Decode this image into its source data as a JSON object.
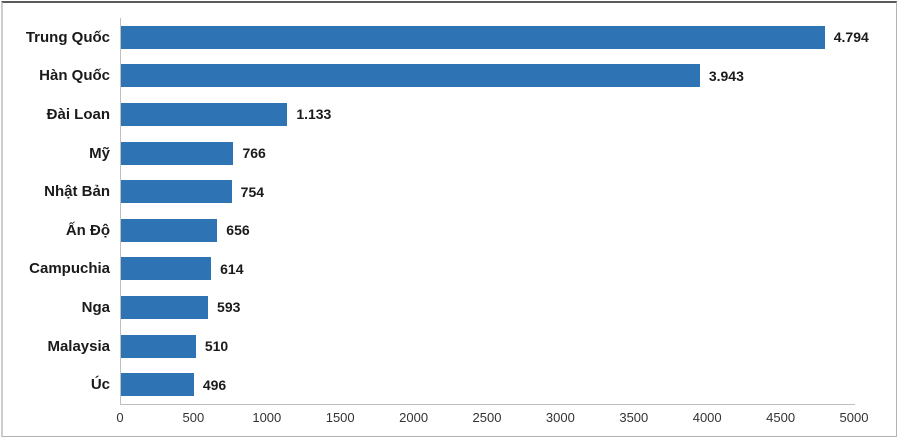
{
  "chart_data": {
    "type": "bar",
    "orientation": "horizontal",
    "title": "",
    "xlabel": "",
    "ylabel": "",
    "categories": [
      "Trung Quốc",
      "Hàn Quốc",
      "Đài Loan",
      "Mỹ",
      "Nhật Bản",
      "Ấn Độ",
      "Campuchia",
      "Nga",
      "Malaysia",
      "Úc"
    ],
    "values": [
      4794,
      3943,
      1133,
      766,
      754,
      656,
      614,
      593,
      510,
      496
    ],
    "value_labels": [
      "4.794",
      "3.943",
      "1.133",
      "766",
      "754",
      "656",
      "614",
      "593",
      "510",
      "496"
    ],
    "xlim": [
      0,
      5000
    ],
    "x_tick_values": [
      0,
      500,
      1000,
      1500,
      2000,
      2500,
      3000,
      3500,
      4000,
      4500,
      5000
    ],
    "x_tick_labels": [
      "0",
      "500",
      "1000",
      "1500",
      "2000",
      "2500",
      "3000",
      "3500",
      "4000",
      "4500",
      "5000"
    ],
    "grid": false,
    "legend": false,
    "colors": {
      "bar": "#2E74B5",
      "axis": "#BFBFBF",
      "label_text": "#1A1A1A",
      "tick_text": "#333333",
      "background": "#FFFFFF"
    }
  }
}
